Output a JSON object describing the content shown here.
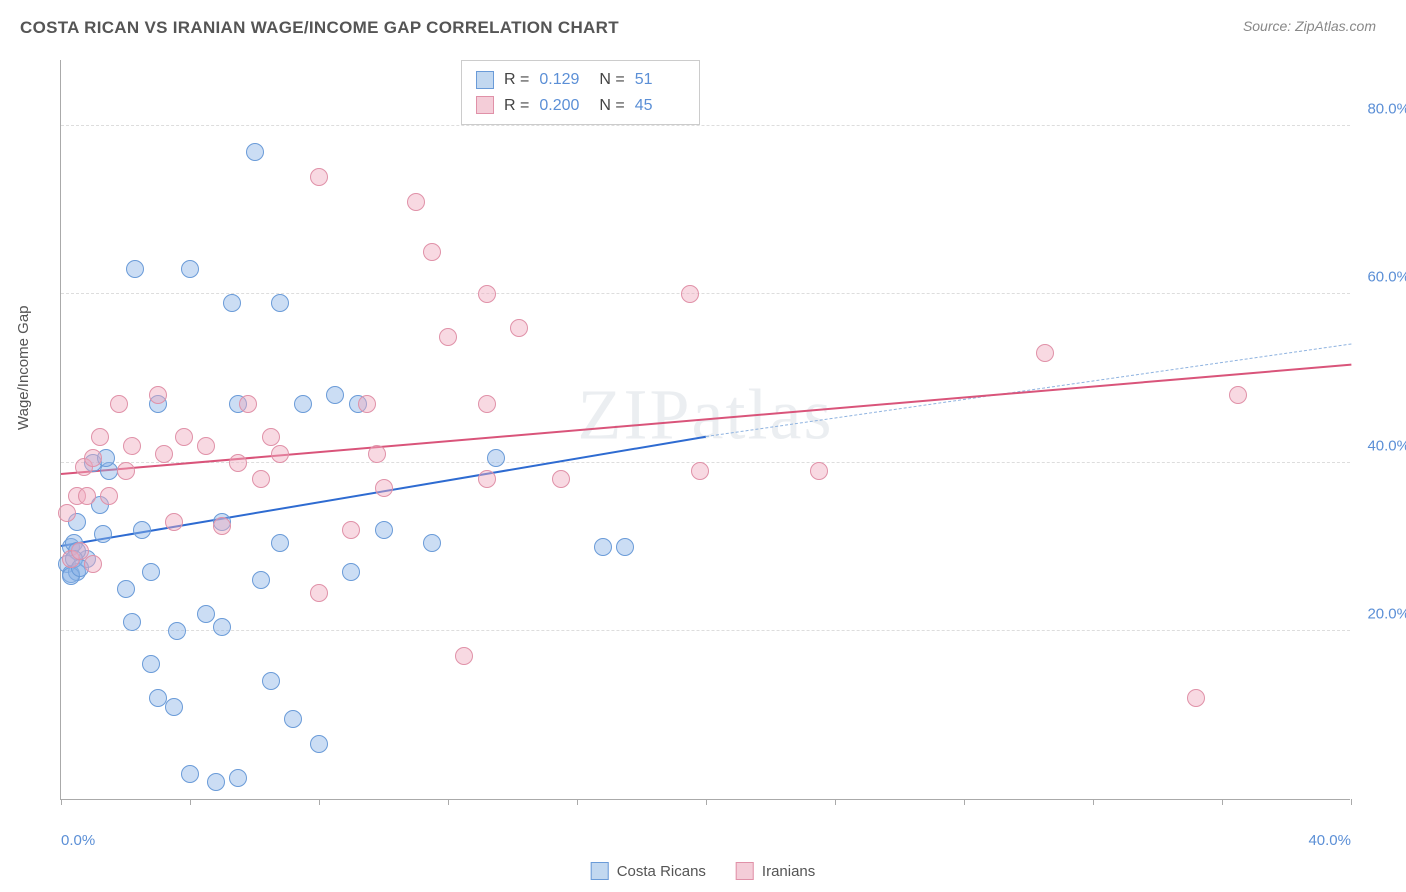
{
  "title": "COSTA RICAN VS IRANIAN WAGE/INCOME GAP CORRELATION CHART",
  "source": "Source: ZipAtlas.com",
  "watermark": "ZIPatlas",
  "yaxis_title": "Wage/Income Gap",
  "chart": {
    "type": "scatter",
    "xlim": [
      0,
      40
    ],
    "ylim": [
      0,
      88
    ],
    "xtick_step": 4,
    "yticks": [
      20,
      40,
      60,
      80
    ],
    "x_labels": [
      {
        "v": 0,
        "t": "0.0%"
      },
      {
        "v": 40,
        "t": "40.0%"
      }
    ],
    "y_labels": [
      {
        "v": 20,
        "t": "20.0%"
      },
      {
        "v": 40,
        "t": "40.0%"
      },
      {
        "v": 60,
        "t": "60.0%"
      },
      {
        "v": 80,
        "t": "80.0%"
      }
    ],
    "background_color": "#ffffff",
    "grid_color": "#dddddd",
    "axis_color": "#aaaaaa",
    "watermark_color": "rgba(120,140,160,0.15)"
  },
  "series": [
    {
      "name": "Costa Ricans",
      "fill": "rgba(140,180,230,0.45)",
      "stroke": "#6a9bd8",
      "swatch_fill": "#c2d8f0",
      "swatch_border": "#6a9bd8",
      "marker_size": 18,
      "R": "0.129",
      "N": "51",
      "trend": {
        "solid": {
          "x1": 0,
          "y1": 30,
          "x2": 20,
          "y2": 43,
          "color": "#2e6bd1",
          "width": 2.5
        },
        "dashed": {
          "x1": 20,
          "y1": 43,
          "x2": 40,
          "y2": 54,
          "color": "#8fb3e0",
          "width": 1.2
        }
      },
      "points": [
        [
          0.2,
          28
        ],
        [
          0.3,
          30
        ],
        [
          0.3,
          26.8
        ],
        [
          0.4,
          30.5
        ],
        [
          0.5,
          33
        ],
        [
          0.5,
          27
        ],
        [
          0.8,
          28.5
        ],
        [
          1.0,
          40
        ],
        [
          0.3,
          26.5
        ],
        [
          0.5,
          29.5
        ],
        [
          0.4,
          28.5
        ],
        [
          0.6,
          27.5
        ],
        [
          1.2,
          35
        ],
        [
          1.5,
          39
        ],
        [
          1.4,
          40.5
        ],
        [
          1.3,
          31.5
        ],
        [
          2.0,
          25
        ],
        [
          2.2,
          21
        ],
        [
          2.3,
          63
        ],
        [
          2.5,
          32
        ],
        [
          2.8,
          16
        ],
        [
          2.8,
          27
        ],
        [
          3.0,
          47
        ],
        [
          3.0,
          12
        ],
        [
          3.5,
          11
        ],
        [
          3.6,
          20
        ],
        [
          4.0,
          63
        ],
        [
          4.0,
          3
        ],
        [
          4.5,
          22
        ],
        [
          4.8,
          2
        ],
        [
          5.0,
          33
        ],
        [
          5.0,
          20.5
        ],
        [
          5.3,
          59
        ],
        [
          5.5,
          47
        ],
        [
          5.5,
          2.5
        ],
        [
          6.0,
          77
        ],
        [
          6.2,
          26
        ],
        [
          6.5,
          14
        ],
        [
          6.8,
          59
        ],
        [
          6.8,
          30.5
        ],
        [
          7.2,
          9.5
        ],
        [
          7.5,
          47
        ],
        [
          8.0,
          6.5
        ],
        [
          8.5,
          48
        ],
        [
          9.0,
          27
        ],
        [
          9.2,
          47
        ],
        [
          10.0,
          32
        ],
        [
          11.5,
          30.5
        ],
        [
          13.5,
          40.5
        ],
        [
          16.8,
          30
        ],
        [
          17.5,
          30
        ]
      ]
    },
    {
      "name": "Iranians",
      "fill": "rgba(240,170,190,0.45)",
      "stroke": "#e091a8",
      "swatch_fill": "#f4cdd8",
      "swatch_border": "#e091a8",
      "marker_size": 18,
      "R": "0.200",
      "N": "45",
      "trend": {
        "solid": {
          "x1": 0,
          "y1": 38.5,
          "x2": 40,
          "y2": 51.5,
          "color": "#d9547a",
          "width": 2.5
        }
      },
      "points": [
        [
          0.2,
          34
        ],
        [
          0.3,
          28.5
        ],
        [
          0.5,
          36
        ],
        [
          0.6,
          29.5
        ],
        [
          0.7,
          39.5
        ],
        [
          0.8,
          36
        ],
        [
          1.0,
          40.5
        ],
        [
          1.2,
          43
        ],
        [
          1.5,
          36
        ],
        [
          1.8,
          47
        ],
        [
          2.0,
          39
        ],
        [
          2.2,
          42
        ],
        [
          1.0,
          28
        ],
        [
          3.0,
          48
        ],
        [
          3.2,
          41
        ],
        [
          3.5,
          33
        ],
        [
          3.8,
          43
        ],
        [
          4.5,
          42
        ],
        [
          5.0,
          32.5
        ],
        [
          5.5,
          40
        ],
        [
          5.8,
          47
        ],
        [
          6.2,
          38
        ],
        [
          6.5,
          43
        ],
        [
          6.8,
          41
        ],
        [
          8.0,
          74
        ],
        [
          8.0,
          24.5
        ],
        [
          9.0,
          32
        ],
        [
          9.5,
          47
        ],
        [
          10.0,
          37
        ],
        [
          9.8,
          41
        ],
        [
          11.0,
          71
        ],
        [
          11.5,
          65
        ],
        [
          12.0,
          55
        ],
        [
          12.5,
          17
        ],
        [
          13.2,
          60
        ],
        [
          13.2,
          47
        ],
        [
          13.2,
          38
        ],
        [
          14.2,
          56
        ],
        [
          15.5,
          38
        ],
        [
          19.5,
          60
        ],
        [
          19.8,
          39
        ],
        [
          23.5,
          39
        ],
        [
          30.5,
          53
        ],
        [
          35.2,
          12
        ],
        [
          36.5,
          48
        ]
      ]
    }
  ],
  "stats_box_labels": {
    "R": "R  =",
    "N": "N  ="
  },
  "legend": {
    "items": [
      "Costa Ricans",
      "Iranians"
    ]
  }
}
